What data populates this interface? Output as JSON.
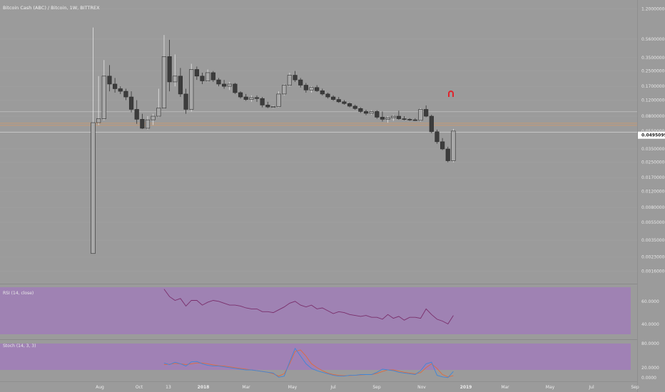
{
  "title": "Bitcoin Cash (ABC) / Bitcoin, 1W, BITTREX",
  "price_axis": {
    "ticks": [
      "1.20000000",
      "0.56000000",
      "0.35000000",
      "0.25000000",
      "0.17000000",
      "0.12000000",
      "0.08000000",
      "0.05500000",
      "0.03500000",
      "0.02500000",
      "0.01700000",
      "0.01200000",
      "0.00800000",
      "0.00550000",
      "0.00350000",
      "0.00230000",
      "0.00160000"
    ],
    "last_price": "0.04950999",
    "scale": "log"
  },
  "x_labels": [
    "Aug",
    "Oct",
    "13",
    "2018",
    "Mar",
    "May",
    "Jul",
    "Sep",
    "Nov",
    "2019",
    "Mar",
    "May",
    "Jul",
    "Sep"
  ],
  "rsi": {
    "title": "RSI (14, close)",
    "ticks": [
      "60.0000",
      "40.0000"
    ]
  },
  "stoch": {
    "title": "Stoch (14, 3, 3)",
    "ticks": [
      "80.0000",
      "20.0000",
      "0.0000"
    ]
  },
  "colors": {
    "background": "#9b9b9b",
    "up_candle": "#a9a9a9",
    "down_candle": "#3c3c3c",
    "rsi_band": "#a07fb6",
    "rsi_line": "#7a2f6c",
    "stoch_k": "#3f86d8",
    "stoch_d": "#e06a3b",
    "orange_level": "#d59a66",
    "marker": "#e0242c"
  },
  "chart_data": {
    "type": "candlestick",
    "title": "Bitcoin Cash (ABC) / Bitcoin, 1W, BITTREX",
    "y_scale": "log",
    "ylim": [
      0.00135,
      1.3
    ],
    "last_price": 0.04950999,
    "horizontal_levels": [
      0.0895,
      0.067,
      0.0635,
      0.0535
    ],
    "ohlc": [
      [
        0.0025,
        0.75,
        0.0025,
        0.068
      ],
      [
        0.068,
        0.22,
        0.064,
        0.075
      ],
      [
        0.075,
        0.33,
        0.072,
        0.22
      ],
      [
        0.22,
        0.29,
        0.15,
        0.18
      ],
      [
        0.18,
        0.21,
        0.145,
        0.16
      ],
      [
        0.16,
        0.17,
        0.14,
        0.15
      ],
      [
        0.15,
        0.16,
        0.12,
        0.13
      ],
      [
        0.13,
        0.15,
        0.088,
        0.095
      ],
      [
        0.095,
        0.12,
        0.066,
        0.074
      ],
      [
        0.074,
        0.085,
        0.058,
        0.059
      ],
      [
        0.059,
        0.08,
        0.057,
        0.073
      ],
      [
        0.073,
        0.085,
        0.064,
        0.08
      ],
      [
        0.08,
        0.16,
        0.078,
        0.098
      ],
      [
        0.098,
        0.62,
        0.097,
        0.36
      ],
      [
        0.36,
        0.55,
        0.15,
        0.19
      ],
      [
        0.19,
        0.38,
        0.17,
        0.22
      ],
      [
        0.22,
        0.27,
        0.13,
        0.14
      ],
      [
        0.14,
        0.16,
        0.085,
        0.095
      ],
      [
        0.095,
        0.3,
        0.09,
        0.26
      ],
      [
        0.26,
        0.28,
        0.2,
        0.22
      ],
      [
        0.22,
        0.24,
        0.18,
        0.195
      ],
      [
        0.195,
        0.26,
        0.19,
        0.24
      ],
      [
        0.24,
        0.25,
        0.19,
        0.2
      ],
      [
        0.2,
        0.21,
        0.17,
        0.18
      ],
      [
        0.18,
        0.2,
        0.16,
        0.17
      ],
      [
        0.17,
        0.19,
        0.155,
        0.18
      ],
      [
        0.18,
        0.185,
        0.14,
        0.145
      ],
      [
        0.145,
        0.15,
        0.125,
        0.13
      ],
      [
        0.13,
        0.14,
        0.118,
        0.122
      ],
      [
        0.122,
        0.135,
        0.115,
        0.128
      ],
      [
        0.128,
        0.135,
        0.115,
        0.125
      ],
      [
        0.125,
        0.13,
        0.1,
        0.106
      ],
      [
        0.106,
        0.115,
        0.098,
        0.101
      ],
      [
        0.101,
        0.105,
        0.098,
        0.102
      ],
      [
        0.102,
        0.15,
        0.1,
        0.14
      ],
      [
        0.14,
        0.18,
        0.135,
        0.175
      ],
      [
        0.175,
        0.24,
        0.17,
        0.225
      ],
      [
        0.225,
        0.25,
        0.19,
        0.2
      ],
      [
        0.2,
        0.21,
        0.165,
        0.175
      ],
      [
        0.175,
        0.185,
        0.145,
        0.155
      ],
      [
        0.155,
        0.17,
        0.145,
        0.165
      ],
      [
        0.165,
        0.175,
        0.148,
        0.152
      ],
      [
        0.152,
        0.16,
        0.135,
        0.14
      ],
      [
        0.14,
        0.145,
        0.125,
        0.13
      ],
      [
        0.13,
        0.135,
        0.118,
        0.122
      ],
      [
        0.122,
        0.13,
        0.112,
        0.115
      ],
      [
        0.115,
        0.12,
        0.107,
        0.11
      ],
      [
        0.11,
        0.113,
        0.1,
        0.103
      ],
      [
        0.103,
        0.107,
        0.094,
        0.097
      ],
      [
        0.097,
        0.1,
        0.087,
        0.09
      ],
      [
        0.09,
        0.094,
        0.082,
        0.086
      ],
      [
        0.086,
        0.093,
        0.083,
        0.09
      ],
      [
        0.09,
        0.093,
        0.075,
        0.078
      ],
      [
        0.078,
        0.09,
        0.07,
        0.074
      ],
      [
        0.074,
        0.08,
        0.068,
        0.077
      ],
      [
        0.077,
        0.083,
        0.071,
        0.08
      ],
      [
        0.08,
        0.092,
        0.073,
        0.075
      ],
      [
        0.075,
        0.08,
        0.072,
        0.074
      ],
      [
        0.074,
        0.076,
        0.071,
        0.073
      ],
      [
        0.073,
        0.076,
        0.071,
        0.072
      ],
      [
        0.072,
        0.098,
        0.07,
        0.095
      ],
      [
        0.095,
        0.105,
        0.078,
        0.08
      ],
      [
        0.08,
        0.083,
        0.052,
        0.054
      ],
      [
        0.054,
        0.057,
        0.04,
        0.042
      ],
      [
        0.042,
        0.046,
        0.034,
        0.035
      ],
      [
        0.035,
        0.037,
        0.025,
        0.026
      ],
      [
        0.026,
        0.058,
        0.025,
        0.055
      ]
    ],
    "rsi": {
      "name": "RSI (14, close)",
      "ylim": [
        30,
        80
      ],
      "values": [
        null,
        null,
        null,
        null,
        null,
        null,
        null,
        null,
        null,
        null,
        null,
        null,
        null,
        78,
        70,
        66,
        68,
        60,
        66,
        66,
        61,
        64,
        66,
        65,
        63,
        61,
        61,
        60,
        58,
        57,
        57,
        54,
        54,
        53,
        56,
        59,
        63,
        65,
        61,
        59,
        61,
        57,
        58,
        55,
        52,
        54,
        53,
        51,
        50,
        49,
        50,
        48,
        48,
        46,
        51,
        47,
        49,
        45,
        48,
        48,
        47,
        57,
        51,
        46,
        44,
        41,
        50
      ]
    },
    "stoch": {
      "name": "Stoch (14, 3, 3)",
      "ylim": [
        0,
        100
      ],
      "k": [
        null,
        null,
        null,
        null,
        null,
        null,
        null,
        null,
        null,
        null,
        null,
        null,
        null,
        42,
        38,
        44,
        40,
        34,
        45,
        46,
        40,
        36,
        34,
        34,
        32,
        30,
        28,
        26,
        24,
        24,
        22,
        20,
        18,
        16,
        5,
        8,
        45,
        80,
        60,
        40,
        28,
        22,
        18,
        14,
        10,
        8,
        8,
        10,
        10,
        12,
        12,
        12,
        18,
        26,
        24,
        22,
        18,
        16,
        14,
        12,
        22,
        40,
        44,
        10,
        6,
        4,
        20
      ],
      "d": [
        null,
        null,
        null,
        null,
        null,
        null,
        null,
        null,
        null,
        null,
        null,
        null,
        null,
        38,
        39,
        41,
        40,
        38,
        40,
        42,
        42,
        40,
        37,
        35,
        34,
        32,
        30,
        28,
        26,
        24,
        22,
        20,
        18,
        14,
        8,
        14,
        40,
        72,
        76,
        60,
        40,
        30,
        22,
        16,
        12,
        10,
        9,
        9,
        10,
        11,
        12,
        12,
        15,
        20,
        24,
        24,
        21,
        18,
        16,
        14,
        17,
        30,
        40,
        28,
        12,
        6,
        9
      ]
    }
  }
}
